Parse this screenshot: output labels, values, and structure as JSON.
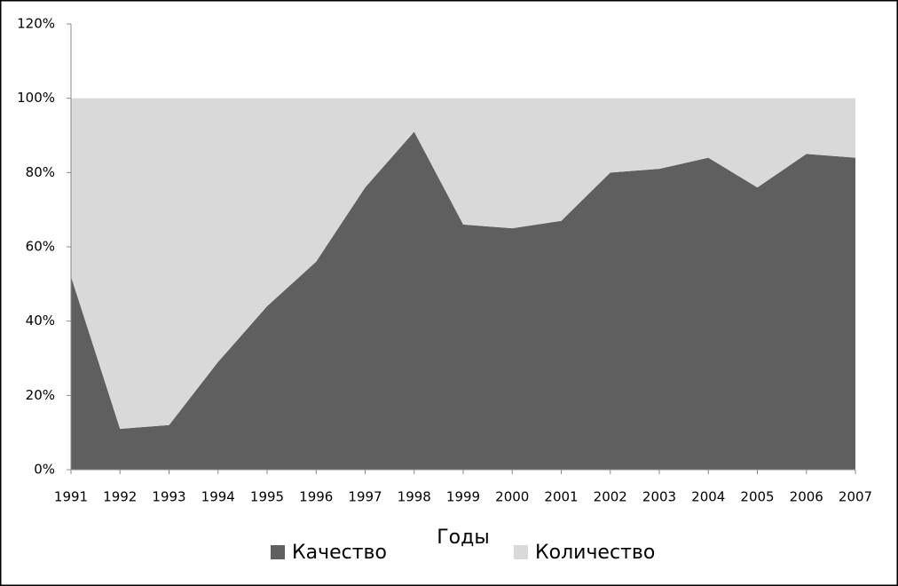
{
  "chart_data": {
    "type": "stacked_area",
    "x_label": "Годы",
    "categories": [
      "1991",
      "1992",
      "1993",
      "1994",
      "1995",
      "1996",
      "1997",
      "1998",
      "1999",
      "2000",
      "2001",
      "2002",
      "2003",
      "2004",
      "2005",
      "2006",
      "2007"
    ],
    "series": [
      {
        "name": "Качество",
        "color": "#5f5f5f",
        "values": [
          52,
          11,
          12,
          29,
          44,
          56,
          76,
          91,
          66,
          65,
          67,
          80,
          81,
          84,
          76,
          85,
          84
        ]
      },
      {
        "name": "Количество",
        "color": "#d9d9d9",
        "values": [
          48,
          89,
          88,
          71,
          56,
          44,
          24,
          9,
          34,
          35,
          33,
          20,
          19,
          16,
          24,
          15,
          16
        ]
      }
    ],
    "ylim": [
      0,
      120
    ],
    "yticks": [
      {
        "value": 0,
        "label": "0%"
      },
      {
        "value": 20,
        "label": "20%"
      },
      {
        "value": 40,
        "label": "40%"
      },
      {
        "value": 60,
        "label": "60%"
      },
      {
        "value": 80,
        "label": "80%"
      },
      {
        "value": 100,
        "label": "100%"
      },
      {
        "value": 120,
        "label": "120%"
      }
    ],
    "grid": false,
    "legend": "bottom"
  }
}
